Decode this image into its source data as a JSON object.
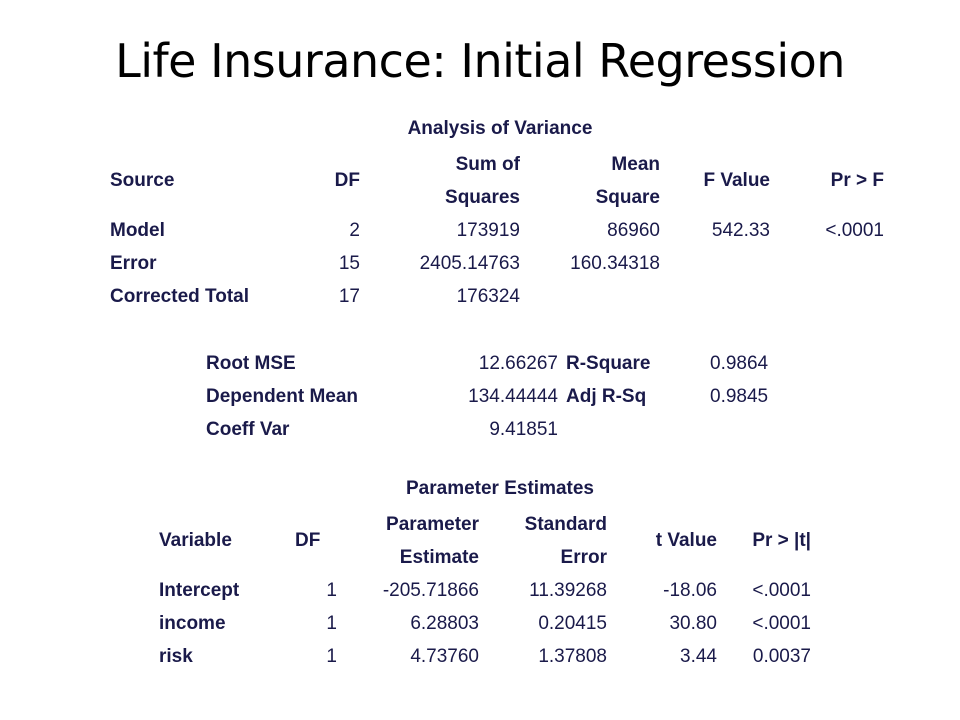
{
  "title": "Life Insurance: Initial Regression",
  "anova": {
    "caption": "Analysis of Variance",
    "headers": {
      "source": "Source",
      "df": "DF",
      "ss_top": "Sum of",
      "ss_bottom": "Squares",
      "ms_top": "Mean",
      "ms_bottom": "Square",
      "f": "F Value",
      "p": "Pr > F"
    },
    "rows": [
      {
        "source": "Model",
        "df": "2",
        "ss": "173919",
        "ms": "86960",
        "f": "542.33",
        "p": "<.0001"
      },
      {
        "source": "Error",
        "df": "15",
        "ss": "2405.14763",
        "ms": "160.34318",
        "f": "",
        "p": ""
      },
      {
        "source": "Corrected Total",
        "df": "17",
        "ss": "176324",
        "ms": "",
        "f": "",
        "p": ""
      }
    ]
  },
  "fit": {
    "rows": [
      {
        "l1": "Root MSE",
        "v1": "12.66267",
        "l2": "R-Square",
        "v2": "0.9864"
      },
      {
        "l1": "Dependent Mean",
        "v1": "134.44444",
        "l2": "Adj R-Sq",
        "v2": "0.9845"
      },
      {
        "l1": "Coeff Var",
        "v1": "9.41851",
        "l2": "",
        "v2": ""
      }
    ]
  },
  "params": {
    "caption": "Parameter Estimates",
    "headers": {
      "variable": "Variable",
      "df": "DF",
      "est_top": "Parameter",
      "est_bottom": "Estimate",
      "se_top": "Standard",
      "se_bottom": "Error",
      "t": "t Value",
      "p": "Pr > |t|"
    },
    "rows": [
      {
        "variable": "Intercept",
        "df": "1",
        "est": "-205.71866",
        "se": "11.39268",
        "t": "-18.06",
        "p": "<.0001"
      },
      {
        "variable": "income",
        "df": "1",
        "est": "6.28803",
        "se": "0.20415",
        "t": "30.80",
        "p": "<.0001"
      },
      {
        "variable": "risk",
        "df": "1",
        "est": "4.73760",
        "se": "1.37808",
        "t": "3.44",
        "p": "0.0037"
      }
    ]
  }
}
